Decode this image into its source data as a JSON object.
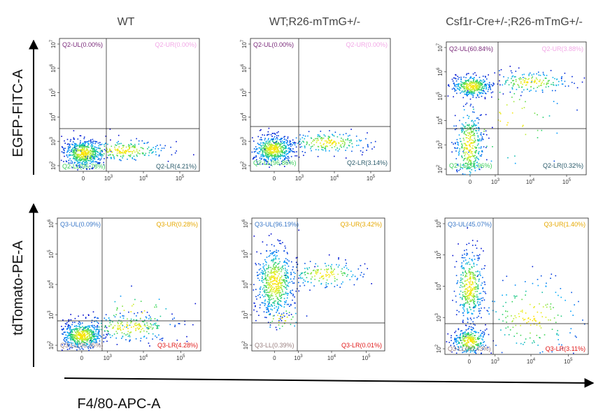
{
  "chart_data": {
    "type": "scatter",
    "x_axis_label": "F4/80-APC-A",
    "row_axis_labels": [
      "EGFP-FITC-A",
      "tdTomato-PE-A"
    ],
    "column_titles": [
      "WT",
      "WT;R26-mTmG+/-",
      "Csf1r-Cre+/-;R26-mTmG+/-"
    ],
    "x_scale": "biexponential",
    "x_tick_labels": [
      "0",
      "10",
      "10",
      "10"
    ],
    "x_tick_exponents": [
      "",
      "3",
      "4",
      "5"
    ],
    "colors": {
      "UL": "#7a2a7a",
      "UR": "#f2a8e6",
      "LL": "#3ccf5a",
      "LR": "#2a5a6a",
      "Q3UL": "#3a78c8",
      "Q3UR": "#e6a800",
      "Q3LL": "#9a8080",
      "Q3LR": "#e01818",
      "density_low": "#0000cc",
      "density_high": "#ffee00"
    },
    "rows": [
      {
        "y_axis_label": "EGFP-FITC-A",
        "y_tick_labels": [
          "10",
          "10",
          "10",
          "10",
          "10",
          "10"
        ],
        "y_tick_exponents": [
          "2",
          "3",
          "4",
          "5",
          "6",
          "7"
        ],
        "panels": [
          {
            "title": "WT",
            "quadrants": {
              "UL": "Q2-UL(0.00%)",
              "UR": "Q2-UR(0.00%)",
              "LL": "Q2-LL(95.78%)",
              "LR": "Q2-LR(4.21%)"
            }
          },
          {
            "title": "WT;R26-mTmG+/-",
            "quadrants": {
              "UL": "Q2-UL(0.00%)",
              "UR": "Q2-UR(0.00%)",
              "LL": "Q2-LL(96.86%)",
              "LR": "Q2-LR(3.14%)"
            }
          },
          {
            "title": "Csf1r-Cre+/-;R26-mTmG+/-",
            "quadrants": {
              "UL": "Q2-UL(60.84%)",
              "UR": "Q2-UR(3.88%)",
              "LL": "Q2-LL(34.96%)",
              "LR": "Q2-LR(0.32%)"
            }
          }
        ]
      },
      {
        "y_axis_label": "tdTomato-PE-A",
        "y_tick_labels": [
          "10",
          "10",
          "10",
          "10",
          "10"
        ],
        "y_tick_exponents": [
          "2",
          "3",
          "4",
          "5",
          "6"
        ],
        "panels": [
          {
            "quadrants": {
              "UL": "Q3-UL(0.09%)",
              "UR": "Q3-UR(0.28%)",
              "LL": "Q3-LL(95.35%)",
              "LR": "Q3-LR(4.28%)"
            }
          },
          {
            "quadrants": {
              "UL": "Q3-UL(96.19%)",
              "UR": "Q3-UR(3.42%)",
              "LL": "Q3-LL(0.39%)",
              "LR": "Q3-LR(0.01%)"
            }
          },
          {
            "quadrants": {
              "UL": "Q3-UL(45.07%)",
              "UR": "Q3-UR(1.40%)",
              "LL": "Q3-LL(50.43%)",
              "LR": "Q3-LR(3.11%)"
            }
          }
        ]
      }
    ]
  }
}
